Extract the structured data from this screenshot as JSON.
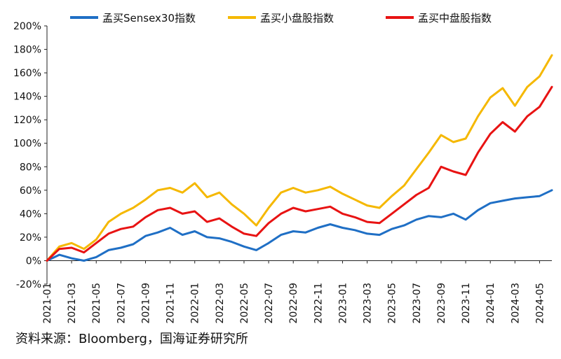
{
  "source": "资料来源：Bloomberg，国海证券研究所",
  "chart_data": {
    "type": "line",
    "title": "",
    "xlabel": "",
    "ylabel": "",
    "legend_position": "top",
    "grid": false,
    "x_range": [
      "2021-01",
      "2024-06"
    ],
    "ylim": [
      -20,
      200
    ],
    "yticks": [
      -20,
      0,
      20,
      40,
      60,
      80,
      100,
      120,
      140,
      160,
      180,
      200
    ],
    "ytick_labels": [
      "-20%",
      "0%",
      "20%",
      "40%",
      "60%",
      "80%",
      "100%",
      "120%",
      "140%",
      "160%",
      "180%",
      "200%"
    ],
    "xtick_labels": [
      "2021-01",
      "2021-03",
      "2021-05",
      "2021-07",
      "2021-09",
      "2021-11",
      "2022-01",
      "2022-03",
      "2022-05",
      "2022-07",
      "2022-09",
      "2022-11",
      "2023-01",
      "2023-03",
      "2023-05",
      "2023-07",
      "2023-09",
      "2023-11",
      "2024-01",
      "2024-03",
      "2024-05"
    ],
    "x": [
      "2021-01",
      "2021-02",
      "2021-03",
      "2021-04",
      "2021-05",
      "2021-06",
      "2021-07",
      "2021-08",
      "2021-09",
      "2021-10",
      "2021-11",
      "2021-12",
      "2022-01",
      "2022-02",
      "2022-03",
      "2022-04",
      "2022-05",
      "2022-06",
      "2022-07",
      "2022-08",
      "2022-09",
      "2022-10",
      "2022-11",
      "2022-12",
      "2023-01",
      "2023-02",
      "2023-03",
      "2023-04",
      "2023-05",
      "2023-06",
      "2023-07",
      "2023-08",
      "2023-09",
      "2023-10",
      "2023-11",
      "2023-12",
      "2024-01",
      "2024-02",
      "2024-03",
      "2024-04",
      "2024-05",
      "2024-06"
    ],
    "series": [
      {
        "name": "孟买Sensex30指数",
        "color": "#1f6fc5",
        "values": [
          0,
          5,
          2,
          0,
          3,
          9,
          11,
          14,
          21,
          24,
          28,
          22,
          25,
          20,
          19,
          16,
          12,
          9,
          15,
          22,
          25,
          24,
          28,
          31,
          28,
          26,
          23,
          22,
          27,
          30,
          35,
          38,
          37,
          40,
          35,
          43,
          49,
          51,
          53,
          54,
          55,
          60
        ]
      },
      {
        "name": "孟买小盘股指数",
        "color": "#f5b800",
        "values": [
          0,
          12,
          15,
          10,
          18,
          33,
          40,
          45,
          52,
          60,
          62,
          58,
          66,
          54,
          58,
          48,
          40,
          30,
          45,
          58,
          62,
          58,
          60,
          63,
          57,
          52,
          47,
          45,
          55,
          64,
          78,
          92,
          107,
          101,
          104,
          123,
          139,
          147,
          132,
          148,
          157,
          175
        ]
      },
      {
        "name": "孟买中盘股指数",
        "color": "#e81313",
        "values": [
          0,
          10,
          11,
          7,
          15,
          23,
          27,
          29,
          37,
          43,
          45,
          40,
          42,
          33,
          36,
          29,
          23,
          21,
          32,
          40,
          45,
          42,
          44,
          46,
          40,
          37,
          33,
          32,
          40,
          48,
          56,
          62,
          80,
          76,
          73,
          92,
          108,
          118,
          110,
          123,
          131,
          148
        ]
      }
    ]
  }
}
